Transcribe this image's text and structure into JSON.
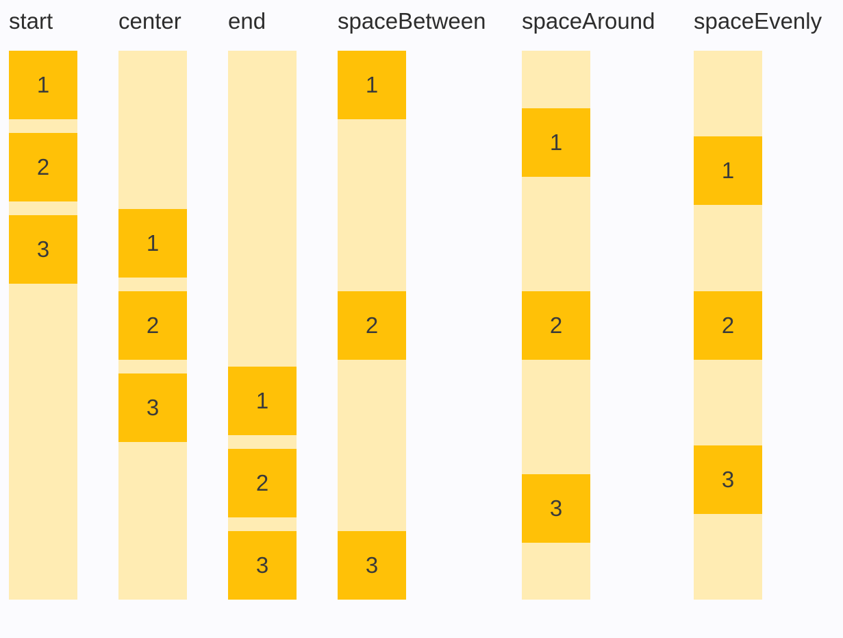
{
  "colors": {
    "background": "#FBFBFE",
    "track": "#FFECB3",
    "item": "#FFC107",
    "label_text": "#2D2D2D",
    "item_text": "#3A3A3A"
  },
  "columns": [
    {
      "label": "start",
      "alignment": "start",
      "items": [
        "1",
        "2",
        "3"
      ]
    },
    {
      "label": "center",
      "alignment": "center",
      "items": [
        "1",
        "2",
        "3"
      ]
    },
    {
      "label": "end",
      "alignment": "end",
      "items": [
        "1",
        "2",
        "3"
      ]
    },
    {
      "label": "spaceBetween",
      "alignment": "spaceBetween",
      "items": [
        "1",
        "2",
        "3"
      ]
    },
    {
      "label": "spaceAround",
      "alignment": "spaceAround",
      "items": [
        "1",
        "2",
        "3"
      ]
    },
    {
      "label": "spaceEvenly",
      "alignment": "spaceEvenly",
      "items": [
        "1",
        "2",
        "3"
      ]
    }
  ]
}
